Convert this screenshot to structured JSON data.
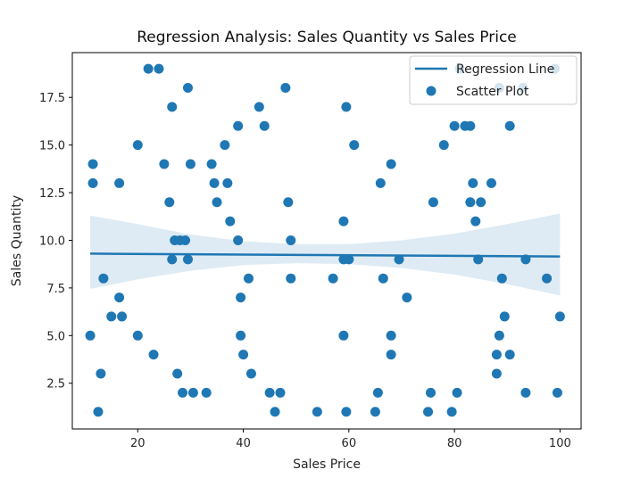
{
  "chart_data": {
    "type": "scatter",
    "title": "Regression Analysis: Sales Quantity vs Sales Price",
    "xlabel": "Sales Price",
    "ylabel": "Sales Quantity",
    "xlim": [
      7.6,
      104
    ],
    "ylim": [
      0.1,
      19.85
    ],
    "xticks": [
      20,
      40,
      60,
      80,
      100
    ],
    "yticks": [
      2.5,
      5.0,
      7.5,
      10.0,
      12.5,
      15.0,
      17.5
    ],
    "ytick_labels": [
      "2.5",
      "5.0",
      "7.5",
      "10.0",
      "12.5",
      "15.0",
      "17.5"
    ],
    "grid": false,
    "legend_position": "top-right",
    "colors": {
      "points": "#1f77b4",
      "line": "#1f77b4",
      "band": "#1f77b4"
    },
    "regression_line": {
      "name": "Regression Line",
      "x": [
        11,
        100
      ],
      "y": [
        9.3,
        9.15
      ]
    },
    "confidence_band": {
      "x": [
        11,
        20,
        30,
        40,
        50,
        60,
        70,
        80,
        90,
        100
      ],
      "lower": [
        7.45,
        7.95,
        8.4,
        8.7,
        8.8,
        8.75,
        8.55,
        8.2,
        7.7,
        7.1
      ],
      "upper": [
        11.3,
        10.85,
        10.3,
        9.95,
        9.8,
        9.8,
        10.0,
        10.35,
        10.85,
        11.4
      ]
    },
    "series": [
      {
        "name": "Scatter Plot",
        "points": [
          [
            11,
            5
          ],
          [
            11.5,
            14
          ],
          [
            11.5,
            13
          ],
          [
            13,
            3
          ],
          [
            12.5,
            1
          ],
          [
            13.5,
            8
          ],
          [
            15,
            6
          ],
          [
            16.5,
            7
          ],
          [
            16.5,
            13
          ],
          [
            17,
            6
          ],
          [
            20,
            15
          ],
          [
            20,
            5
          ],
          [
            22,
            19
          ],
          [
            23,
            4
          ],
          [
            24,
            19
          ],
          [
            25,
            14
          ],
          [
            26,
            12
          ],
          [
            26.5,
            17
          ],
          [
            27,
            10
          ],
          [
            26.5,
            9
          ],
          [
            27.5,
            3
          ],
          [
            28,
            10
          ],
          [
            28.5,
            2
          ],
          [
            29,
            10
          ],
          [
            29.5,
            9
          ],
          [
            29.5,
            18
          ],
          [
            30,
            14
          ],
          [
            30.5,
            2
          ],
          [
            33,
            2
          ],
          [
            34,
            14
          ],
          [
            34.5,
            13
          ],
          [
            35,
            12
          ],
          [
            36.5,
            15
          ],
          [
            37,
            13
          ],
          [
            37.5,
            11
          ],
          [
            39,
            16
          ],
          [
            39,
            10
          ],
          [
            39.5,
            5
          ],
          [
            39.5,
            7
          ],
          [
            40,
            4
          ],
          [
            41,
            8
          ],
          [
            41.5,
            3
          ],
          [
            43,
            17
          ],
          [
            44,
            16
          ],
          [
            45,
            2
          ],
          [
            46,
            1
          ],
          [
            47,
            2
          ],
          [
            48,
            18
          ],
          [
            48.5,
            12
          ],
          [
            49,
            10
          ],
          [
            49,
            8
          ],
          [
            54,
            1
          ],
          [
            57,
            8
          ],
          [
            59,
            5
          ],
          [
            59,
            9
          ],
          [
            59,
            11
          ],
          [
            59.5,
            17
          ],
          [
            59.5,
            1
          ],
          [
            60,
            9
          ],
          [
            61,
            15
          ],
          [
            65,
            1
          ],
          [
            65.5,
            2
          ],
          [
            66,
            13
          ],
          [
            66.5,
            8
          ],
          [
            68,
            14
          ],
          [
            68,
            5
          ],
          [
            68,
            4
          ],
          [
            69.5,
            9
          ],
          [
            71,
            7
          ],
          [
            75,
            1
          ],
          [
            75.5,
            2
          ],
          [
            76,
            12
          ],
          [
            78,
            15
          ],
          [
            79.5,
            1
          ],
          [
            80,
            16
          ],
          [
            80.5,
            2
          ],
          [
            81,
            19
          ],
          [
            82,
            16
          ],
          [
            83,
            16
          ],
          [
            83,
            12
          ],
          [
            83.5,
            13
          ],
          [
            84,
            11
          ],
          [
            84.5,
            9
          ],
          [
            85,
            12
          ],
          [
            87,
            13
          ],
          [
            88,
            4
          ],
          [
            88,
            3
          ],
          [
            88.5,
            5
          ],
          [
            88.5,
            18
          ],
          [
            89,
            8
          ],
          [
            89.5,
            6
          ],
          [
            90.5,
            16
          ],
          [
            90.5,
            4
          ],
          [
            93,
            18
          ],
          [
            93.5,
            2
          ],
          [
            93.5,
            9
          ],
          [
            97.5,
            8
          ],
          [
            99,
            19
          ],
          [
            99.5,
            2
          ],
          [
            100,
            6
          ]
        ]
      }
    ]
  }
}
